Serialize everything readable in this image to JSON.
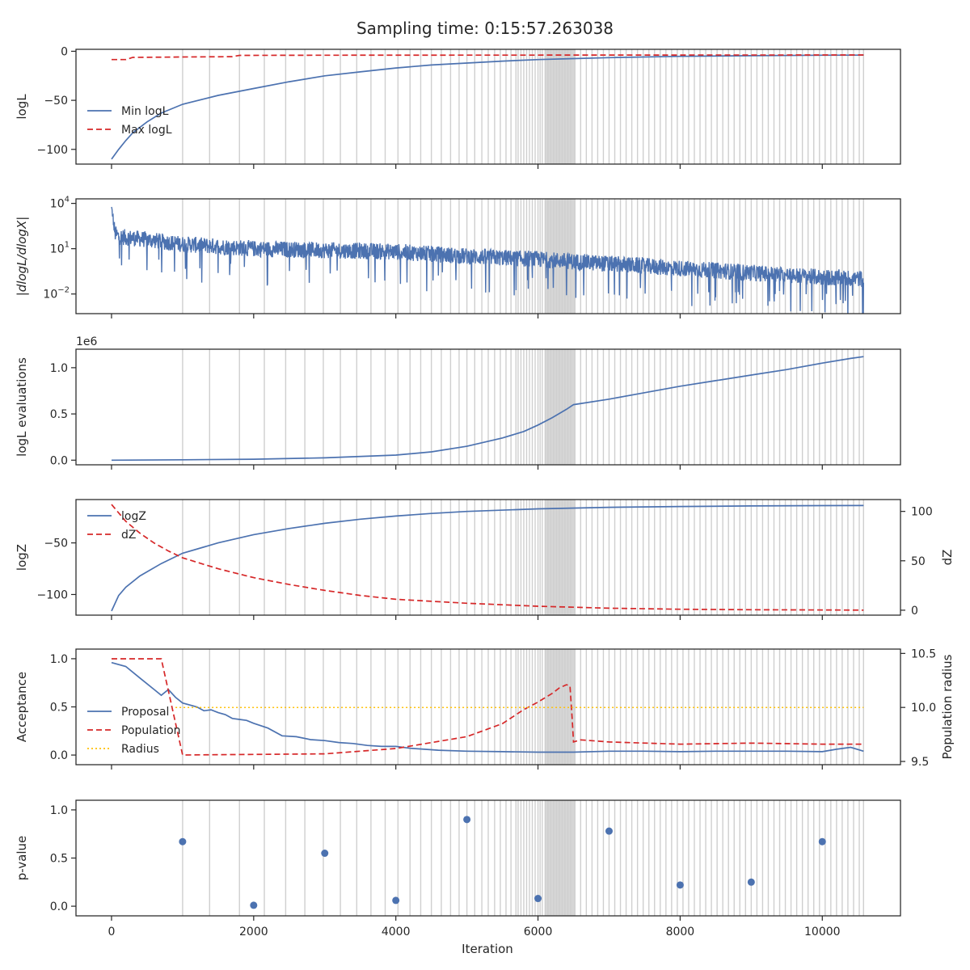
{
  "suptitle": "Sampling time: 0:15:57.263038",
  "colors": {
    "blue": "#4c72b0",
    "red": "#d62728",
    "gold": "#ffc107",
    "grey": "#cfcfcf",
    "frame": "#262626"
  },
  "shared_x": {
    "label": "Iteration",
    "lim": [
      -500,
      11100
    ],
    "ticks": [
      0,
      2000,
      4000,
      6000,
      8000,
      10000
    ]
  },
  "insertion_markers": {
    "note_iterations": [
      1000,
      1380,
      1800,
      2150,
      2450,
      2720,
      2980,
      3220,
      3450,
      3650,
      3850,
      4030,
      4200,
      4350,
      4500,
      4640,
      4770,
      4890,
      5000,
      5110,
      5210,
      5300,
      5390,
      5470,
      5550,
      5620,
      5690,
      5720,
      5760,
      5800,
      5840,
      5880,
      5920,
      5960,
      6000,
      6030,
      6060,
      6100,
      6140,
      6180,
      6220,
      6260,
      6300,
      6340,
      6380,
      6420,
      6460,
      6520,
      6600,
      6680,
      6760,
      6840,
      6920,
      7000,
      7080,
      7160,
      7240,
      7320,
      7400,
      7480,
      7560,
      7640,
      7720,
      7800,
      7880,
      7960,
      8040,
      8120,
      8200,
      8280,
      8360,
      8440,
      8520,
      8600,
      8680,
      8760,
      8840,
      8920,
      9000,
      9080,
      9160,
      9240,
      9320,
      9400,
      9480,
      9560,
      9640,
      9720,
      9800,
      9880,
      9960,
      10040,
      10120,
      10200,
      10280,
      10360,
      10440,
      10520,
      10580
    ],
    "dense_band": [
      6100,
      6520
    ]
  },
  "chart_data": [
    {
      "type": "line",
      "panel": "logL",
      "ylabel": "logL",
      "ylim": [
        -115,
        2
      ],
      "yticks": [
        0,
        -50,
        -100
      ],
      "ytick_labels": [
        "0",
        "−50",
        "−100"
      ],
      "legend": "center-left",
      "series": [
        {
          "name": "Min logL",
          "style": "solid",
          "color": "#4c72b0",
          "x": [
            0,
            100,
            200,
            300,
            500,
            700,
            1000,
            1500,
            2000,
            2500,
            3000,
            3500,
            4000,
            4500,
            5000,
            5500,
            6000,
            6500,
            7000,
            8000,
            9000,
            10000,
            10580
          ],
          "y": [
            -110,
            -100,
            -91,
            -83,
            -72,
            -63,
            -54,
            -45,
            -38,
            -31,
            -25,
            -21,
            -17,
            -14,
            -12,
            -10,
            -8.5,
            -7.5,
            -6.5,
            -5.2,
            -4.5,
            -4,
            -3.9
          ]
        },
        {
          "name": "Max logL",
          "style": "dashed",
          "color": "#d62728",
          "x": [
            0,
            200,
            300,
            1000,
            1700,
            1800,
            3000,
            5000,
            10580
          ],
          "y": [
            -8.5,
            -8.5,
            -6.2,
            -5.8,
            -5.5,
            -4.2,
            -4.0,
            -3.9,
            -3.8
          ]
        }
      ]
    },
    {
      "type": "line",
      "panel": "dlogL/dlogX",
      "ylabel": "|dlogL/dlogX|",
      "yscale": "log",
      "ylim_log10": [
        -3.3,
        4.3
      ],
      "yticks_log10": [
        4,
        1,
        -2
      ],
      "ytick_labels": [
        "10",
        "10",
        "10"
      ],
      "ytick_exponents": [
        "4",
        "1",
        "−2"
      ],
      "series": [
        {
          "name": "",
          "style": "noisy",
          "color": "#4c72b0",
          "x": [
            0,
            50,
            100,
            500,
            1000,
            2000,
            3000,
            4000,
            5000,
            6000,
            7000,
            8000,
            9000,
            10000,
            10580
          ],
          "y_log10": [
            3.5,
            2.0,
            1.8,
            1.6,
            1.3,
            1.0,
            0.9,
            0.8,
            0.5,
            0.3,
            0.0,
            -0.3,
            -0.6,
            -0.9,
            -1.0
          ],
          "noise_log10": 0.9
        }
      ]
    },
    {
      "type": "line",
      "panel": "logL evaluations",
      "ylabel": "logL evaluations",
      "offset_label": "1e6",
      "ylim": [
        -0.05,
        1.2
      ],
      "yticks": [
        0.0,
        0.5,
        1.0
      ],
      "ytick_labels": [
        "0.0",
        "0.5",
        "1.0"
      ],
      "series": [
        {
          "name": "",
          "style": "solid",
          "color": "#4c72b0",
          "x": [
            0,
            1000,
            2000,
            3000,
            4000,
            4500,
            5000,
            5500,
            5800,
            6000,
            6200,
            6400,
            6500,
            7000,
            7500,
            8000,
            8500,
            9000,
            9500,
            10000,
            10400,
            10580
          ],
          "y": [
            0.0,
            0.004,
            0.01,
            0.025,
            0.055,
            0.09,
            0.15,
            0.24,
            0.31,
            0.38,
            0.46,
            0.55,
            0.6,
            0.66,
            0.73,
            0.8,
            0.86,
            0.92,
            0.98,
            1.05,
            1.1,
            1.12
          ]
        }
      ]
    },
    {
      "type": "line",
      "panel": "logZ",
      "ylabel": "logZ",
      "ylim": [
        -120,
        -8
      ],
      "yticks": [
        -50,
        -100
      ],
      "ytick_labels": [
        "−50",
        "−100"
      ],
      "ylabel_right": "dZ",
      "ylim_right": [
        -5,
        112
      ],
      "yticks_right": [
        0,
        50,
        100
      ],
      "legend": "upper-left",
      "series": [
        {
          "name": "logZ",
          "axis": "left",
          "style": "solid",
          "color": "#4c72b0",
          "x": [
            0,
            100,
            200,
            400,
            700,
            1000,
            1500,
            2000,
            2500,
            3000,
            3500,
            4000,
            4500,
            5000,
            6000,
            7000,
            8000,
            9000,
            10000,
            10580
          ],
          "y": [
            -116,
            -101,
            -93,
            -82,
            -70,
            -60,
            -50,
            -42,
            -36,
            -31,
            -27,
            -24,
            -21.5,
            -19.5,
            -17,
            -15.5,
            -14.7,
            -14.2,
            -13.9,
            -13.8
          ]
        },
        {
          "name": "dZ",
          "axis": "right",
          "style": "dashed",
          "color": "#d62728",
          "x": [
            0,
            200,
            400,
            600,
            800,
            1000,
            1500,
            2000,
            2500,
            3000,
            3500,
            4000,
            5000,
            6000,
            7000,
            8000,
            9000,
            10000,
            10580
          ],
          "y": [
            107,
            90,
            78,
            68,
            60,
            53,
            42,
            33,
            26,
            20,
            15,
            11,
            7,
            4,
            2,
            1,
            0.5,
            0.2,
            0.1
          ]
        }
      ]
    },
    {
      "type": "line",
      "panel": "Acceptance",
      "ylabel": "Acceptance",
      "ylim": [
        -0.1,
        1.1
      ],
      "yticks": [
        0.0,
        0.5,
        1.0
      ],
      "ytick_labels": [
        "0.0",
        "0.5",
        "1.0"
      ],
      "ylabel_right": "Population radius",
      "ylim_right": [
        9.47,
        10.54
      ],
      "yticks_right": [
        9.5,
        10.0,
        10.5
      ],
      "ytick_labels_right": [
        "9.5",
        "10.0",
        "10.5"
      ],
      "legend": "center-left",
      "series": [
        {
          "name": "Proposal",
          "axis": "left",
          "style": "solid",
          "color": "#4c72b0",
          "x": [
            0,
            200,
            400,
            600,
            700,
            800,
            900,
            1000,
            1200,
            1300,
            1400,
            1500,
            1600,
            1700,
            1800,
            1900,
            2000,
            2200,
            2400,
            2600,
            2800,
            3000,
            3200,
            3400,
            3600,
            3800,
            4000,
            4200,
            4400,
            4600,
            5000,
            5500,
            6000,
            6500,
            7000,
            7500,
            8000,
            8500,
            9000,
            9500,
            10000,
            10200,
            10400,
            10580
          ],
          "y": [
            0.96,
            0.92,
            0.8,
            0.68,
            0.62,
            0.68,
            0.6,
            0.54,
            0.5,
            0.46,
            0.47,
            0.44,
            0.42,
            0.38,
            0.37,
            0.36,
            0.33,
            0.28,
            0.2,
            0.19,
            0.16,
            0.15,
            0.13,
            0.12,
            0.1,
            0.09,
            0.09,
            0.07,
            0.06,
            0.05,
            0.04,
            0.035,
            0.03,
            0.03,
            0.04,
            0.04,
            0.035,
            0.04,
            0.04,
            0.04,
            0.035,
            0.06,
            0.08,
            0.04
          ]
        },
        {
          "name": "Population",
          "axis": "right",
          "style": "dashed",
          "color": "#d62728",
          "x": [
            0,
            700,
            1000,
            3000,
            4000,
            5000,
            5500,
            5800,
            6000,
            6200,
            6300,
            6400,
            6450,
            6480,
            6500,
            6600,
            7000,
            8000,
            9000,
            10000,
            10580
          ],
          "y": [
            10.45,
            10.45,
            9.56,
            9.57,
            9.62,
            9.73,
            9.85,
            9.98,
            10.05,
            10.13,
            10.18,
            10.21,
            10.2,
            9.9,
            9.68,
            9.7,
            9.68,
            9.66,
            9.67,
            9.66,
            9.66
          ]
        },
        {
          "name": "Radius",
          "axis": "right",
          "style": "dotted",
          "color": "#ffc107",
          "x": [
            900,
            10580
          ],
          "y": [
            10.0,
            10.0
          ]
        }
      ]
    },
    {
      "type": "scatter",
      "panel": "p-value",
      "ylabel": "p-value",
      "ylim": [
        -0.1,
        1.1
      ],
      "yticks": [
        0.0,
        0.5,
        1.0
      ],
      "ytick_labels": [
        "0.0",
        "0.5",
        "1.0"
      ],
      "series": [
        {
          "name": "",
          "color": "#4c72b0",
          "x": [
            1000,
            2000,
            3000,
            4000,
            5000,
            6000,
            7000,
            8000,
            9000,
            10000
          ],
          "y": [
            0.67,
            0.01,
            0.55,
            0.06,
            0.9,
            0.08,
            0.78,
            0.22,
            0.25,
            0.67
          ]
        }
      ]
    }
  ]
}
